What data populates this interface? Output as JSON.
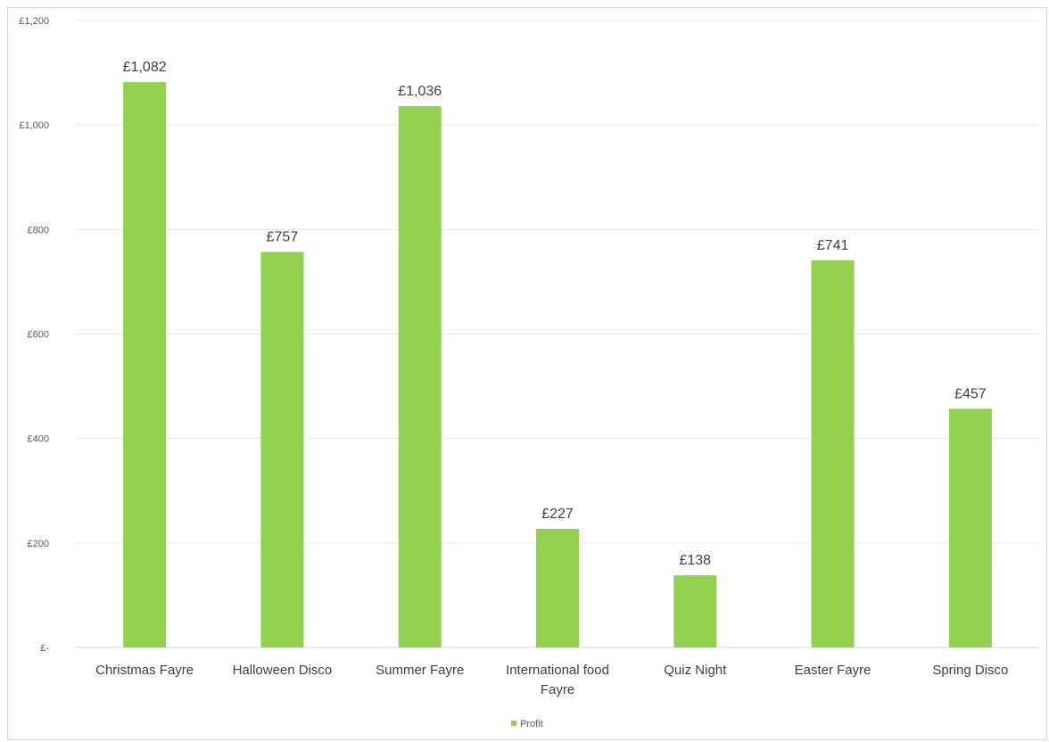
{
  "chart_data": {
    "type": "bar",
    "categories": [
      "Christmas Fayre",
      "Halloween Disco",
      "Summer Fayre",
      "International food Fayre",
      "Quiz Night",
      "Easter Fayre",
      "Spring Disco"
    ],
    "series": [
      {
        "name": "Profit",
        "values": [
          1082,
          757,
          1036,
          227,
          138,
          741,
          457
        ],
        "color": "#92d050"
      }
    ],
    "data_labels": [
      "£1,082",
      "£757",
      "£1,036",
      "£227",
      "£138",
      "£741",
      "£457"
    ],
    "y_ticks": [
      0,
      200,
      400,
      600,
      800,
      1000,
      1200
    ],
    "y_tick_labels": [
      "£-",
      "£200",
      "£400",
      "£600",
      "£800",
      "£1,000",
      "£1,200"
    ],
    "ylim": [
      0,
      1200
    ],
    "grid": true,
    "legend_position": "bottom",
    "title": "",
    "xlabel": "",
    "ylabel": ""
  }
}
